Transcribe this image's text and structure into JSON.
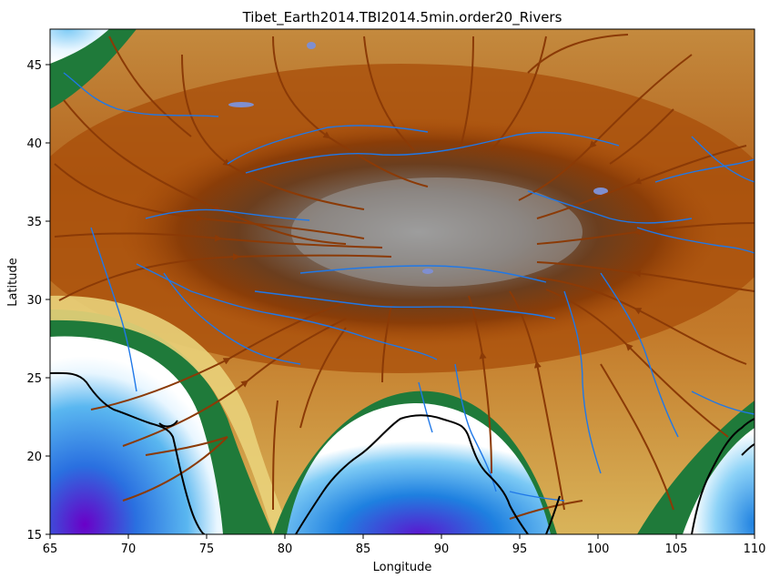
{
  "title": "Tibet_Earth2014.TBI2014.5min.order20_Rivers",
  "xlabel": "Longitude",
  "ylabel": "Latitude",
  "xticks": [
    "65",
    "70",
    "75",
    "80",
    "85",
    "90",
    "95",
    "100",
    "105",
    "110"
  ],
  "yticks": [
    "15",
    "20",
    "25",
    "30",
    "35",
    "40",
    "45"
  ],
  "map": {
    "lon_range": [
      65,
      110
    ],
    "lat_range": [
      15,
      47.2
    ],
    "layers": [
      "topography-colormap",
      "streamlines",
      "rivers",
      "coastlines",
      "lakes"
    ],
    "colors": {
      "deep_ocean": "#6a00c8",
      "ocean": "#1e90e0",
      "shallow": "#ffffff",
      "lowland": "#1f7a3a",
      "midland": "#e9d27a",
      "highland": "#a84d0a",
      "plateau": "#8a8a8a",
      "river": "#1f78e8",
      "coast": "#000000",
      "streamline": "#8b3a06",
      "lake": "#7f8fd0"
    }
  }
}
